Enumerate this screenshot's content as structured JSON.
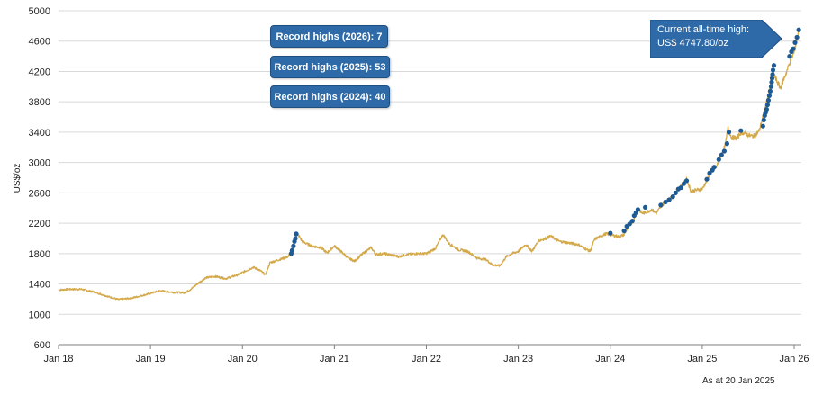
{
  "chart_data": {
    "type": "line",
    "ylabel": "US$/oz",
    "ylim": [
      600,
      5000
    ],
    "yticks": [
      600,
      1000,
      1400,
      1800,
      2200,
      2600,
      3000,
      3400,
      3800,
      4200,
      4600,
      5000
    ],
    "xticks": [
      "Jan 18",
      "Jan 19",
      "Jan 20",
      "Jan 21",
      "Jan 22",
      "Jan 23",
      "Jan 24",
      "Jan 25",
      "Jan 26"
    ],
    "xlim": [
      2018.0,
      2026.05
    ],
    "grid": "horizontal",
    "colors": {
      "price_line": "#d4a94a",
      "record_marker": "#1e5a93",
      "badge": "#2e6aa8"
    },
    "series": [
      {
        "kind": "line",
        "anchors": [
          [
            2018.0,
            1320
          ],
          [
            2018.1,
            1330
          ],
          [
            2018.25,
            1330
          ],
          [
            2018.4,
            1290
          ],
          [
            2018.55,
            1230
          ],
          [
            2018.65,
            1195
          ],
          [
            2018.8,
            1215
          ],
          [
            2018.95,
            1260
          ],
          [
            2019.1,
            1310
          ],
          [
            2019.25,
            1290
          ],
          [
            2019.38,
            1285
          ],
          [
            2019.45,
            1340
          ],
          [
            2019.52,
            1410
          ],
          [
            2019.6,
            1480
          ],
          [
            2019.7,
            1500
          ],
          [
            2019.82,
            1470
          ],
          [
            2019.95,
            1520
          ],
          [
            2020.05,
            1580
          ],
          [
            2020.12,
            1620
          ],
          [
            2020.2,
            1570
          ],
          [
            2020.25,
            1520
          ],
          [
            2020.3,
            1680
          ],
          [
            2020.4,
            1720
          ],
          [
            2020.5,
            1760
          ],
          [
            2020.57,
            1960
          ],
          [
            2020.6,
            2060
          ],
          [
            2020.65,
            1960
          ],
          [
            2020.75,
            1900
          ],
          [
            2020.85,
            1880
          ],
          [
            2020.92,
            1810
          ],
          [
            2021.0,
            1900
          ],
          [
            2021.08,
            1820
          ],
          [
            2021.15,
            1740
          ],
          [
            2021.22,
            1700
          ],
          [
            2021.3,
            1790
          ],
          [
            2021.4,
            1880
          ],
          [
            2021.45,
            1790
          ],
          [
            2021.55,
            1800
          ],
          [
            2021.62,
            1780
          ],
          [
            2021.7,
            1760
          ],
          [
            2021.8,
            1790
          ],
          [
            2021.9,
            1800
          ],
          [
            2022.0,
            1800
          ],
          [
            2022.1,
            1870
          ],
          [
            2022.18,
            2050
          ],
          [
            2022.25,
            1930
          ],
          [
            2022.35,
            1850
          ],
          [
            2022.45,
            1830
          ],
          [
            2022.55,
            1740
          ],
          [
            2022.65,
            1720
          ],
          [
            2022.72,
            1650
          ],
          [
            2022.8,
            1640
          ],
          [
            2022.87,
            1760
          ],
          [
            2022.95,
            1810
          ],
          [
            2023.0,
            1830
          ],
          [
            2023.08,
            1920
          ],
          [
            2023.15,
            1830
          ],
          [
            2023.22,
            1970
          ],
          [
            2023.3,
            2000
          ],
          [
            2023.35,
            2030
          ],
          [
            2023.45,
            1960
          ],
          [
            2023.55,
            1940
          ],
          [
            2023.65,
            1920
          ],
          [
            2023.72,
            1870
          ],
          [
            2023.78,
            1830
          ],
          [
            2023.83,
            1990
          ],
          [
            2023.9,
            2030
          ],
          [
            2023.95,
            2060
          ],
          [
            2024.0,
            2050
          ],
          [
            2024.1,
            2020
          ],
          [
            2024.15,
            2050
          ],
          [
            2024.2,
            2160
          ],
          [
            2024.25,
            2230
          ],
          [
            2024.3,
            2390
          ],
          [
            2024.35,
            2330
          ],
          [
            2024.4,
            2350
          ],
          [
            2024.45,
            2380
          ],
          [
            2024.5,
            2330
          ],
          [
            2024.55,
            2420
          ],
          [
            2024.6,
            2480
          ],
          [
            2024.65,
            2520
          ],
          [
            2024.7,
            2580
          ],
          [
            2024.75,
            2660
          ],
          [
            2024.83,
            2780
          ],
          [
            2024.88,
            2620
          ],
          [
            2024.95,
            2640
          ],
          [
            2025.0,
            2650
          ],
          [
            2025.05,
            2760
          ],
          [
            2025.1,
            2900
          ],
          [
            2025.15,
            2930
          ],
          [
            2025.2,
            3080
          ],
          [
            2025.25,
            3220
          ],
          [
            2025.28,
            3450
          ],
          [
            2025.32,
            3330
          ],
          [
            2025.38,
            3320
          ],
          [
            2025.42,
            3400
          ],
          [
            2025.47,
            3380
          ],
          [
            2025.52,
            3350
          ],
          [
            2025.57,
            3350
          ],
          [
            2025.62,
            3420
          ],
          [
            2025.67,
            3650
          ],
          [
            2025.72,
            3880
          ],
          [
            2025.77,
            4200
          ],
          [
            2025.8,
            4100
          ],
          [
            2025.85,
            3980
          ],
          [
            2025.88,
            4080
          ],
          [
            2025.92,
            4200
          ],
          [
            2025.96,
            4350
          ],
          [
            2026.0,
            4450
          ],
          [
            2026.03,
            4620
          ],
          [
            2026.05,
            4748
          ]
        ]
      },
      {
        "kind": "markers",
        "name": "Record highs",
        "points": [
          [
            2020.53,
            1800
          ],
          [
            2020.54,
            1840
          ],
          [
            2020.555,
            1900
          ],
          [
            2020.565,
            1960
          ],
          [
            2020.575,
            2000
          ],
          [
            2020.585,
            2060
          ],
          [
            2024.0,
            2070
          ],
          [
            2024.15,
            2100
          ],
          [
            2024.18,
            2160
          ],
          [
            2024.21,
            2190
          ],
          [
            2024.24,
            2230
          ],
          [
            2024.26,
            2300
          ],
          [
            2024.28,
            2340
          ],
          [
            2024.3,
            2380
          ],
          [
            2024.38,
            2410
          ],
          [
            2024.55,
            2440
          ],
          [
            2024.6,
            2480
          ],
          [
            2024.64,
            2510
          ],
          [
            2024.68,
            2550
          ],
          [
            2024.71,
            2600
          ],
          [
            2024.74,
            2650
          ],
          [
            2024.77,
            2670
          ],
          [
            2024.8,
            2720
          ],
          [
            2024.83,
            2760
          ],
          [
            2025.05,
            2780
          ],
          [
            2025.08,
            2860
          ],
          [
            2025.11,
            2900
          ],
          [
            2025.13,
            2940
          ],
          [
            2025.18,
            3040
          ],
          [
            2025.21,
            3100
          ],
          [
            2025.24,
            3150
          ],
          [
            2025.27,
            3250
          ],
          [
            2025.29,
            3400
          ],
          [
            2025.42,
            3420
          ],
          [
            2025.66,
            3480
          ],
          [
            2025.67,
            3560
          ],
          [
            2025.68,
            3620
          ],
          [
            2025.69,
            3660
          ],
          [
            2025.7,
            3700
          ],
          [
            2025.71,
            3760
          ],
          [
            2025.72,
            3820
          ],
          [
            2025.73,
            3880
          ],
          [
            2025.74,
            3940
          ],
          [
            2025.75,
            4000
          ],
          [
            2025.755,
            4060
          ],
          [
            2025.76,
            4110
          ],
          [
            2025.765,
            4160
          ],
          [
            2025.77,
            4220
          ],
          [
            2025.78,
            4280
          ],
          [
            2025.95,
            4400
          ],
          [
            2025.97,
            4460
          ],
          [
            2025.99,
            4500
          ],
          [
            2026.01,
            4580
          ],
          [
            2026.03,
            4650
          ],
          [
            2026.05,
            4748
          ]
        ]
      }
    ],
    "badges": [
      {
        "label": "Record highs (2026): 7"
      },
      {
        "label": "Record highs (2025): 53"
      },
      {
        "label": "Record highs (2024): 40"
      }
    ],
    "callout": {
      "line1": "Current all-time high:",
      "line2": "US$ 4747.80/oz"
    },
    "footnote": "As at 20 Jan 2025"
  }
}
